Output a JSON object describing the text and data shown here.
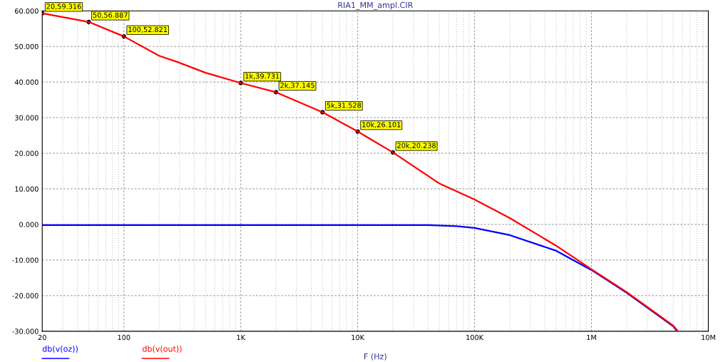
{
  "chart_data": {
    "type": "line",
    "title": "RIA1_MM_ampl.CIR",
    "xlabel": "F (Hz)",
    "log": "x",
    "grid": true,
    "legend": "bottom left",
    "line_style": "solid",
    "marker": "none",
    "xlim": [
      20,
      10000000
    ],
    "xticks": [
      20,
      100,
      {
        "value": 1000,
        "label": "1K"
      },
      {
        "value": 10000,
        "label": "10K"
      },
      {
        "value": 100000,
        "label": "100K"
      },
      {
        "value": 1000000,
        "label": "1M"
      },
      {
        "value": 10000000,
        "label": "10M"
      }
    ],
    "ylim": [
      -30,
      60
    ],
    "yticks": [
      {
        "value": -30,
        "label": "-30.000"
      },
      {
        "value": -20,
        "label": "-20.000"
      },
      {
        "value": -10,
        "label": "-10.000"
      },
      {
        "value": 0,
        "label": "0.000"
      },
      {
        "value": 10,
        "label": "10.000"
      },
      {
        "value": 20,
        "label": "20.000"
      },
      {
        "value": 30,
        "label": "30.000"
      },
      {
        "value": 40,
        "label": "40.000"
      },
      {
        "value": 50,
        "label": "50.000"
      },
      {
        "value": 60,
        "label": "60.000"
      }
    ],
    "series": [
      {
        "name": "db(v(oz))",
        "color": "#0000ff",
        "x": [
          20,
          1000,
          40000,
          70000,
          100000,
          200000,
          500000,
          1000000,
          2000000,
          5000000,
          5400000
        ],
        "values": [
          -0.2,
          -0.2,
          -0.2,
          -0.5,
          -1,
          -3,
          -7.4,
          -12.8,
          -19.2,
          -28.6,
          -30
        ]
      },
      {
        "name": "db(v(out))",
        "color": "#ff0000",
        "x": [
          20,
          50,
          100,
          200,
          300,
          500,
          1000,
          2000,
          5000,
          10000,
          20000,
          50000,
          100000,
          200000,
          500000,
          1000000,
          2000000,
          5000000,
          5500000
        ],
        "values": [
          59.316,
          56.887,
          52.821,
          47.4,
          45.4,
          42.6,
          39.731,
          37.145,
          31.528,
          26.101,
          20.238,
          11.5,
          7,
          1.8,
          -6,
          -12.6,
          -19,
          -28.4,
          -30
        ]
      }
    ],
    "annotations": [
      {
        "text": "20,59.316",
        "x": 20,
        "y": 59.316
      },
      {
        "text": "50,56.887",
        "x": 50,
        "y": 56.887
      },
      {
        "text": "100,52.821",
        "x": 100,
        "y": 52.821
      },
      {
        "text": "1k,39.731",
        "x": 1000,
        "y": 39.731
      },
      {
        "text": "2k,37.145",
        "x": 2000,
        "y": 37.145
      },
      {
        "text": "5k,31.528",
        "x": 5000,
        "y": 31.528
      },
      {
        "text": "10k,26.101",
        "x": 10000,
        "y": 26.101
      },
      {
        "text": "20k,20.238",
        "x": 20000,
        "y": 20.238
      }
    ]
  }
}
